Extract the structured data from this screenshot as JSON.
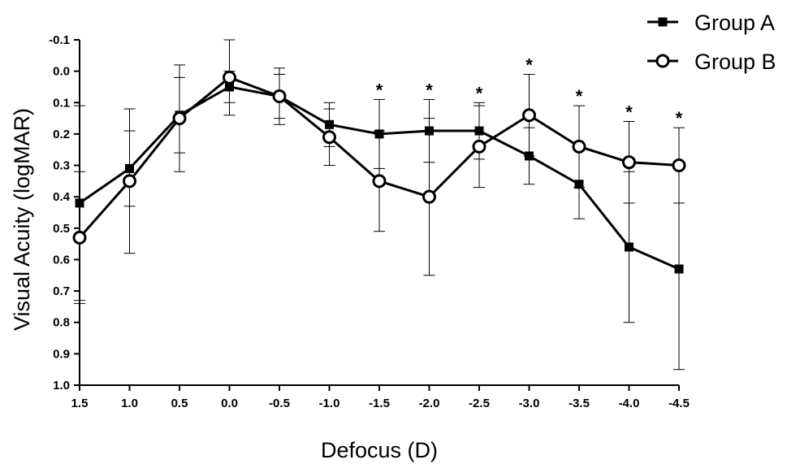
{
  "chart_data": {
    "type": "line",
    "title": "",
    "xlabel": "Defocus (D)",
    "ylabel": "Visual Acuity (logMAR)",
    "x": [
      "1.5",
      "1.0",
      "0.5",
      "0.0",
      "-0.5",
      "-1.0",
      "-1.5",
      "-2.0",
      "-2.5",
      "-3.0",
      "-3.5",
      "-4.0",
      "-4.5"
    ],
    "ylim": [
      -0.1,
      1.0
    ],
    "y_inverted": true,
    "y_ticks": [
      "-0.1",
      "0.0",
      "0.1",
      "0.2",
      "0.3",
      "0.4",
      "0.5",
      "0.6",
      "0.7",
      "0.8",
      "0.9",
      "1.0"
    ],
    "series": [
      {
        "name": "Group A",
        "marker": "filled-square",
        "values": [
          0.42,
          0.31,
          0.14,
          0.05,
          0.08,
          0.17,
          0.2,
          0.19,
          0.19,
          0.27,
          0.36,
          0.56,
          0.63
        ],
        "error": [
          0.31,
          0.12,
          0.12,
          0.05,
          0.07,
          0.07,
          0.11,
          0.1,
          0.09,
          0.09,
          0.11,
          0.24,
          0.32
        ]
      },
      {
        "name": "Group B",
        "marker": "open-circle",
        "values": [
          0.53,
          0.35,
          0.15,
          0.02,
          0.08,
          0.21,
          0.35,
          0.4,
          0.24,
          0.14,
          0.24,
          0.29,
          0.3
        ],
        "error": [
          0.21,
          0.23,
          0.17,
          0.12,
          0.09,
          0.09,
          0.16,
          0.25,
          0.13,
          0.13,
          0.13,
          0.13,
          0.12
        ]
      }
    ],
    "significance": {
      "symbol": "*",
      "positions": [
        "-1.5",
        "-2.0",
        "-2.5",
        "-3.0",
        "-3.5",
        "-4.0",
        "-4.5"
      ]
    },
    "grid": false,
    "legend_position": "top-right",
    "colors": {
      "line": "#000000",
      "background": "#ffffff"
    }
  },
  "legend": [
    {
      "label": "Group A",
      "marker": "filled-square"
    },
    {
      "label": "Group B",
      "marker": "open-circle"
    }
  ]
}
